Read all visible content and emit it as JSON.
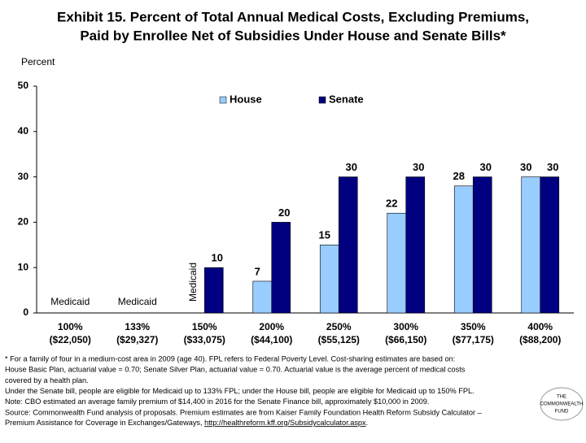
{
  "chart_data": {
    "type": "bar",
    "title": [
      "Exhibit 15. Percent of Total Annual Medical Costs, Excluding Premiums,",
      "Paid by Enrollee Net of Subsidies Under House and Senate Bills*"
    ],
    "y_label": "Percent",
    "categories": [
      [
        "100%",
        "($22,050)"
      ],
      [
        "133%",
        "($29,327)"
      ],
      [
        "150%",
        "($33,075)"
      ],
      [
        "200%",
        "($44,100)"
      ],
      [
        "250%",
        "($55,125)"
      ],
      [
        "300%",
        "($66,150)"
      ],
      [
        "350%",
        "($77,175)"
      ],
      [
        "400%",
        "($88,200)"
      ]
    ],
    "series": [
      {
        "name": "House",
        "color": "#99ccff",
        "values": [
          null,
          null,
          null,
          7,
          15,
          22,
          28,
          30
        ]
      },
      {
        "name": "Senate",
        "color": "#000080",
        "values": [
          null,
          null,
          10,
          20,
          30,
          30,
          30,
          30
        ]
      }
    ],
    "category_notes": [
      "Medicaid",
      "Medicaid",
      "Medicaid",
      null,
      null,
      null,
      null,
      null
    ],
    "ylim": [
      0,
      50
    ],
    "yticks": [
      0,
      10,
      20,
      30,
      40,
      50
    ],
    "grid": false,
    "legend": "top"
  },
  "footnote": {
    "lines": [
      "* For a family of four in a medium-cost area in 2009 (age 40). FPL refers to Federal Poverty Level. Cost-sharing estimates are based on:",
      "House Basic Plan, actuarial value = 0.70; Senate Silver Plan, actuarial value = 0.70. Actuarial value is the average percent of medical costs",
      "covered by a health plan.",
      "Under the Senate bill, people are eligible for Medicaid up to 133% FPL; under the House bill, people are eligible for Medicaid up to 150% FPL.",
      "Note: CBO estimated an average family premium of $14,400 in 2016 for the Senate Finance bill, approximately $10,000 in 2009.",
      "Source: Commonwealth Fund analysis of proposals. Premium estimates are from Kaiser Family Foundation Health Reform Subsidy Calculator –"
    ],
    "last_line": {
      "text": "Premium Assistance for Coverage in Exchanges/Gateways, ",
      "link": "http://healthreform.kff.org/Subsidycalculator.aspx",
      "end": "."
    }
  },
  "logo": [
    "THE",
    "COMMONWEALTH",
    "FUND"
  ]
}
